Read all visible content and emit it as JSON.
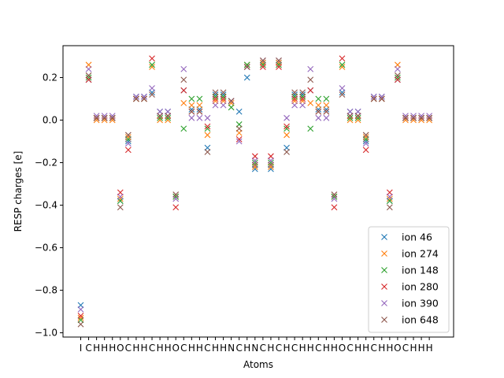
{
  "chart_data": {
    "type": "scatter",
    "marker": "x",
    "xlabel": "Atoms",
    "ylabel": "RESP charges [e]",
    "ylim": [
      -1.02,
      0.35
    ],
    "yticks": [
      -1.0,
      -0.8,
      -0.6,
      -0.4,
      -0.2,
      0.0,
      0.2
    ],
    "ytick_labels": [
      "−1.0",
      "−0.8",
      "−0.6",
      "−0.4",
      "−0.2",
      "0.0",
      "0.2"
    ],
    "grid": false,
    "legend_position": "lower right",
    "categories": [
      "I",
      "C",
      "H",
      "H",
      "H",
      "O",
      "C",
      "H",
      "H",
      "C",
      "H",
      "H",
      "O",
      "C",
      "H",
      "H",
      "C",
      "H",
      "H",
      "N",
      "C",
      "H",
      "N",
      "C",
      "H",
      "C",
      "H",
      "C",
      "H",
      "H",
      "C",
      "H",
      "H",
      "O",
      "C",
      "H",
      "H",
      "C",
      "H",
      "H",
      "O",
      "C",
      "H",
      "H",
      "H"
    ],
    "series": [
      {
        "name": "ion 46",
        "color": "#1f77b4",
        "values": [
          -0.87,
          0.19,
          0.01,
          0.01,
          0.01,
          -0.38,
          -0.1,
          0.11,
          0.11,
          0.13,
          0.04,
          0.04,
          -0.36,
          0.14,
          0.05,
          0.05,
          -0.13,
          0.12,
          0.12,
          0.09,
          0.04,
          0.2,
          -0.23,
          0.27,
          -0.23,
          0.27,
          -0.13,
          0.12,
          0.12,
          0.14,
          0.05,
          0.05,
          -0.36,
          0.13,
          0.04,
          0.04,
          -0.1,
          0.11,
          0.11,
          -0.38,
          0.19,
          0.01,
          0.01,
          0.01,
          0.01
        ]
      },
      {
        "name": "ion 274",
        "color": "#ff7f0e",
        "values": [
          -0.93,
          0.26,
          0.0,
          0.0,
          0.0,
          -0.37,
          -0.08,
          0.1,
          0.1,
          0.25,
          0.0,
          0.0,
          -0.36,
          0.08,
          0.07,
          0.07,
          -0.07,
          0.09,
          0.09,
          0.08,
          -0.06,
          0.26,
          -0.22,
          0.27,
          -0.22,
          0.27,
          -0.07,
          0.09,
          0.09,
          0.08,
          0.07,
          0.07,
          -0.36,
          0.25,
          0.0,
          0.0,
          -0.08,
          0.1,
          0.1,
          -0.37,
          0.26,
          0.0,
          0.0,
          0.0,
          0.0
        ]
      },
      {
        "name": "ion 148",
        "color": "#2ca02c",
        "values": [
          -0.94,
          0.2,
          0.01,
          0.01,
          0.01,
          -0.38,
          -0.09,
          0.1,
          0.1,
          0.26,
          0.01,
          0.01,
          -0.36,
          -0.04,
          0.1,
          0.1,
          -0.04,
          0.11,
          0.11,
          0.06,
          -0.02,
          0.26,
          -0.2,
          0.26,
          -0.2,
          0.26,
          -0.04,
          0.11,
          0.11,
          -0.04,
          0.1,
          0.1,
          -0.36,
          0.26,
          0.01,
          0.01,
          -0.09,
          0.1,
          0.1,
          -0.38,
          0.2,
          0.01,
          0.01,
          0.01,
          0.01
        ]
      },
      {
        "name": "ion 280",
        "color": "#d62728",
        "values": [
          -0.92,
          0.19,
          0.01,
          0.01,
          0.01,
          -0.34,
          -0.14,
          0.1,
          0.1,
          0.29,
          0.02,
          0.02,
          -0.41,
          0.14,
          0.04,
          0.04,
          -0.03,
          0.1,
          0.1,
          0.09,
          -0.09,
          0.25,
          -0.17,
          0.25,
          -0.17,
          0.25,
          -0.03,
          0.1,
          0.1,
          0.14,
          0.04,
          0.04,
          -0.41,
          0.29,
          0.02,
          0.02,
          -0.14,
          0.1,
          0.1,
          -0.34,
          0.19,
          0.01,
          0.01,
          0.01,
          0.01
        ]
      },
      {
        "name": "ion 390",
        "color": "#9467bd",
        "values": [
          -0.89,
          0.24,
          0.02,
          0.02,
          0.02,
          -0.36,
          -0.11,
          0.11,
          0.11,
          0.15,
          0.04,
          0.04,
          -0.37,
          0.24,
          0.01,
          0.01,
          0.01,
          0.07,
          0.07,
          0.09,
          -0.1,
          0.25,
          -0.19,
          0.28,
          -0.19,
          0.28,
          0.01,
          0.07,
          0.07,
          0.24,
          0.01,
          0.01,
          -0.37,
          0.15,
          0.04,
          0.04,
          -0.11,
          0.11,
          0.11,
          -0.36,
          0.24,
          0.02,
          0.02,
          0.02,
          0.02
        ]
      },
      {
        "name": "ion 648",
        "color": "#8c564b",
        "values": [
          -0.96,
          0.21,
          0.01,
          0.01,
          0.01,
          -0.41,
          -0.07,
          0.1,
          0.1,
          0.12,
          0.02,
          0.02,
          -0.35,
          0.19,
          0.04,
          0.04,
          -0.15,
          0.13,
          0.13,
          0.09,
          -0.04,
          0.25,
          -0.21,
          0.28,
          -0.21,
          0.28,
          -0.15,
          0.13,
          0.13,
          0.19,
          0.04,
          0.04,
          -0.35,
          0.12,
          0.02,
          0.02,
          -0.07,
          0.1,
          0.1,
          -0.41,
          0.21,
          0.01,
          0.01,
          0.01,
          0.01
        ]
      }
    ]
  }
}
